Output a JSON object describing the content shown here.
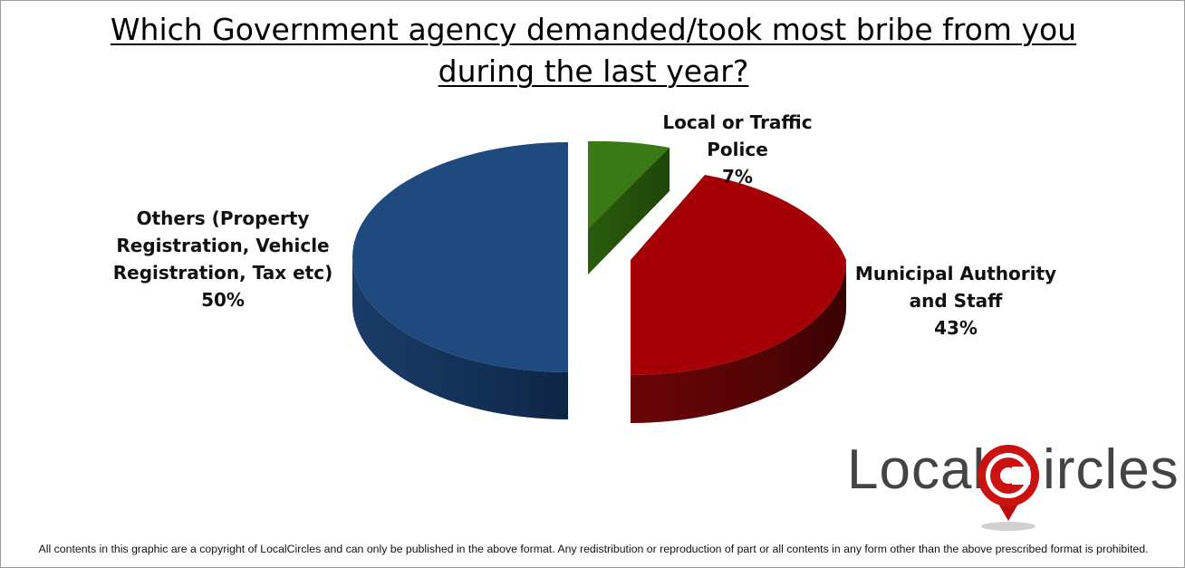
{
  "chart_data": {
    "type": "pie",
    "title": "Which Government agency demanded/took most bribe from you during the last year?",
    "title_lines": [
      "Which Government agency demanded/took most bribe from you",
      "during the last year?"
    ],
    "slices": [
      {
        "label_lines": [
          "Local or Traffic Police"
        ],
        "value": 7,
        "display": "7%",
        "color": "#3a7a14",
        "exploded": true
      },
      {
        "label_lines": [
          "Municipal Authority",
          "and Staff"
        ],
        "value": 43,
        "display": "43%",
        "color": "#a50006",
        "exploded": true
      },
      {
        "label_lines": [
          "Others (Property",
          "Registration, Vehicle",
          "Registration, Tax etc)"
        ],
        "value": 50,
        "display": "50%",
        "color": "#1f4a7f",
        "exploded": false
      }
    ]
  },
  "logo": {
    "text_left": "Local",
    "text_c": "C",
    "text_right": "ircles",
    "accent_color": "#cc1111"
  },
  "footer": "All contents in this graphic are a copyright of LocalCircles and can only be published in the above format. Any redistribution or reproduction of part or all contents in any form other than the above prescribed format is prohibited."
}
